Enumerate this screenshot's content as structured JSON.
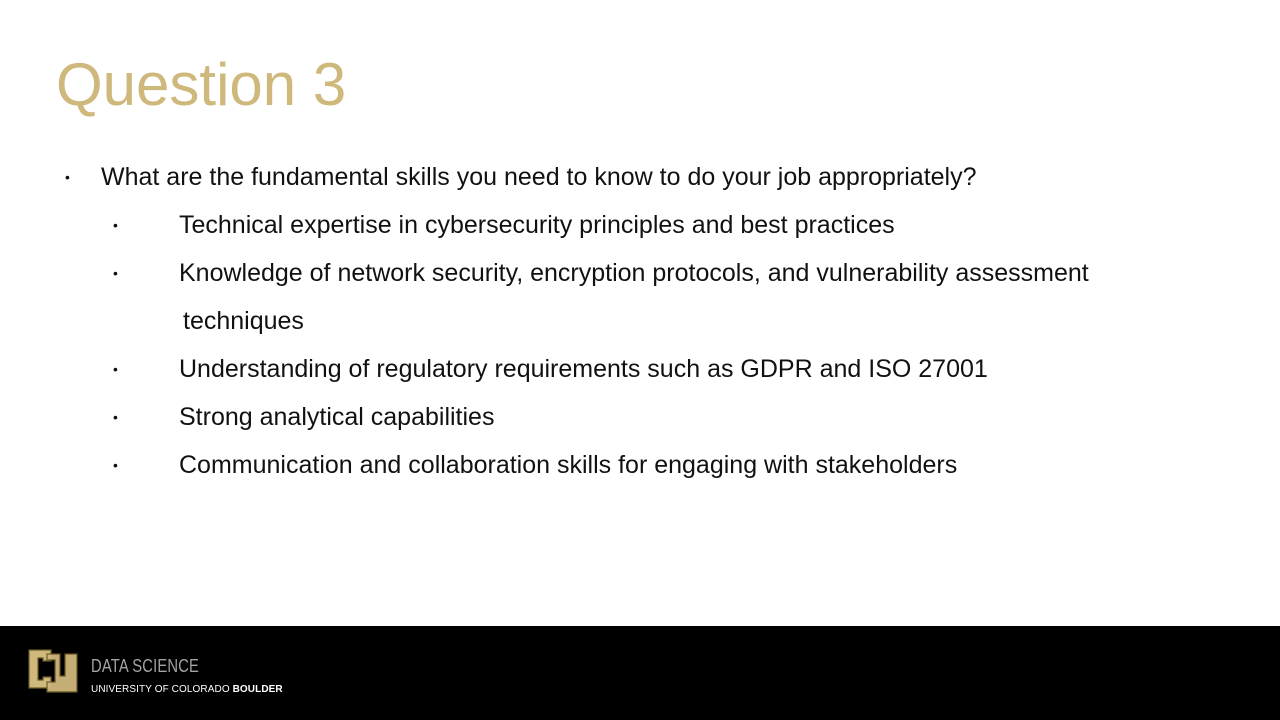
{
  "colors": {
    "title": "#CFB87C",
    "text": "#111111",
    "footer_bg": "#000000",
    "brand_text": "#A2A4A3",
    "logo_gold": "#CFB87C"
  },
  "slide": {
    "title": "Question 3",
    "question": {
      "bullet": "•",
      "text": "What are the fundamental skills you need to know to do your job appropriately?"
    },
    "answers": [
      {
        "bullet": "•",
        "text": "Technical expertise in cybersecurity principles and best practices"
      },
      {
        "bullet": "•",
        "text": "Knowledge of network security, encryption protocols, and vulnerability assessment",
        "continuation": "techniques"
      },
      {
        "bullet": "•",
        "text": "Understanding of regulatory requirements such as GDPR and ISO 27001"
      },
      {
        "bullet": "•",
        "text": "Strong analytical capabilities"
      },
      {
        "bullet": "•",
        "text": "Communication and collaboration skills for engaging with stakeholders"
      }
    ]
  },
  "footer": {
    "logo_icon": "cu-logo-icon",
    "department": "DATA SCIENCE",
    "university_prefix": "UNIVERSITY OF COLORADO ",
    "university_campus": "BOULDER"
  }
}
